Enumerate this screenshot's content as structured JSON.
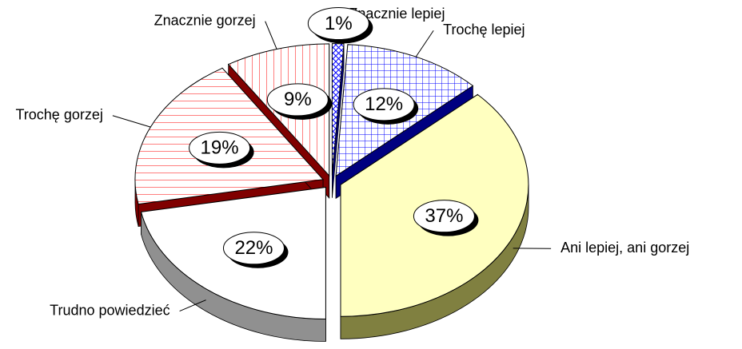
{
  "chart_data": {
    "type": "pie",
    "categories": [
      "Znacznie lepiej",
      "Trochę lepiej",
      "Ani lepiej, ani gorzej",
      "Trudno powiedzieć",
      "Trochę gorzej",
      "Znacznie gorzej"
    ],
    "values": [
      1,
      12,
      37,
      22,
      19,
      9
    ],
    "value_labels": [
      "1%",
      "12%",
      "37%",
      "22%",
      "19%",
      "9%"
    ],
    "colors": [
      "#0000ff",
      "#0000ff",
      "#ffffc0",
      "#ffffff",
      "#ff0000",
      "#ff0000"
    ],
    "side_colors": [
      "#000080",
      "#000080",
      "#808040",
      "#909090",
      "#800000",
      "#800000"
    ]
  }
}
